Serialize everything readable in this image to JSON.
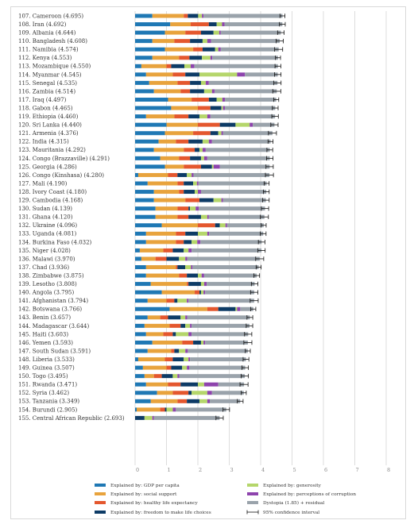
{
  "chart_data": {
    "type": "bar",
    "stacked": true,
    "orientation": "horizontal",
    "xlim": [
      0,
      8
    ],
    "x_ticks": [
      0,
      1,
      2,
      3,
      4,
      5,
      6,
      7,
      8
    ],
    "grid": "vertical",
    "legend_position": "bottom",
    "colors": {
      "gdp": "#1f78b4",
      "social": "#e8a33d",
      "health": "#e4572e",
      "freedom": "#0d3b66",
      "generosity": "#b5d66b",
      "corruption": "#8e44ad",
      "dystopia": "#9aa3ab",
      "ci": "#111111"
    },
    "legend": [
      {
        "key": "gdp",
        "label": "Explained by: GDP per capita"
      },
      {
        "key": "generosity",
        "label": "Explained by: generosity"
      },
      {
        "key": "social",
        "label": "Explained by: social support"
      },
      {
        "key": "corruption",
        "label": "Explained by: perceptions of corruption"
      },
      {
        "key": "health",
        "label": "Explained by: healthy life expectancy"
      },
      {
        "key": "dystopia",
        "label": "Dystopia (1.85) + residual"
      },
      {
        "key": "freedom",
        "label": "Explained by: freedom to make life choices"
      },
      {
        "key": "ci",
        "label": "95% confidence interval"
      }
    ],
    "rows": [
      {
        "label": "107. Cameroon (4.695)",
        "score": 4.695,
        "gdp": 0.55,
        "social": 1.0,
        "health": 0.13,
        "freedom": 0.33,
        "generosity": 0.12,
        "corruption": 0.05
      },
      {
        "label": "108. Iran (4.692)",
        "score": 4.692,
        "gdp": 1.12,
        "social": 0.65,
        "health": 0.58,
        "freedom": 0.25,
        "generosity": 0.17,
        "corruption": 0.08
      },
      {
        "label": "109. Albania (4.644)",
        "score": 4.644,
        "gdp": 0.95,
        "social": 0.65,
        "health": 0.5,
        "freedom": 0.4,
        "generosity": 0.18,
        "corruption": 0.05
      },
      {
        "label": "110. Bangladesh (4.608)",
        "score": 4.608,
        "gdp": 0.55,
        "social": 0.7,
        "health": 0.5,
        "freedom": 0.4,
        "generosity": 0.15,
        "corruption": 0.12
      },
      {
        "label": "111. Namibia (4.574)",
        "score": 4.574,
        "gdp": 0.95,
        "social": 0.9,
        "health": 0.3,
        "freedom": 0.4,
        "generosity": 0.1,
        "corruption": 0.08
      },
      {
        "label": "112. Kenya (4.553)",
        "score": 4.553,
        "gdp": 0.55,
        "social": 0.85,
        "health": 0.33,
        "freedom": 0.4,
        "generosity": 0.27,
        "corruption": 0.06
      },
      {
        "label": "113. Mozambique (4.550)",
        "score": 4.55,
        "gdp": 0.2,
        "social": 0.8,
        "health": 0.15,
        "freedom": 0.42,
        "generosity": 0.2,
        "corruption": 0.12
      },
      {
        "label": "114. Myanmar (4.545)",
        "score": 4.545,
        "gdp": 0.35,
        "social": 0.85,
        "health": 0.4,
        "freedom": 0.45,
        "generosity": 1.2,
        "corruption": 0.25
      },
      {
        "label": "115. Senegal (4.535)",
        "score": 4.535,
        "gdp": 0.45,
        "social": 0.9,
        "health": 0.4,
        "freedom": 0.35,
        "generosity": 0.15,
        "corruption": 0.1
      },
      {
        "label": "116. Zambia (4.514)",
        "score": 4.514,
        "gdp": 0.6,
        "social": 0.85,
        "health": 0.3,
        "freedom": 0.45,
        "generosity": 0.25,
        "corruption": 0.08
      },
      {
        "label": "117. Iraq (4.497)",
        "score": 4.497,
        "gdp": 1.05,
        "social": 0.75,
        "health": 0.55,
        "freedom": 0.25,
        "generosity": 0.18,
        "corruption": 0.08
      },
      {
        "label": "118. Gabon (4.465)",
        "score": 4.465,
        "gdp": 1.15,
        "social": 0.85,
        "health": 0.4,
        "freedom": 0.35,
        "generosity": 0.05,
        "corruption": 0.06
      },
      {
        "label": "119. Ethiopia (4.460)",
        "score": 4.46,
        "gdp": 0.35,
        "social": 0.9,
        "health": 0.45,
        "freedom": 0.35,
        "generosity": 0.25,
        "corruption": 0.1
      },
      {
        "label": "120. Sri Lanka (4.440)",
        "score": 4.44,
        "gdp": 1.0,
        "social": 1.0,
        "health": 0.7,
        "freedom": 0.5,
        "generosity": 0.45,
        "corruption": 0.1
      },
      {
        "label": "121. Armenia (4.376)",
        "score": 4.376,
        "gdp": 0.95,
        "social": 0.9,
        "health": 0.55,
        "freedom": 0.25,
        "generosity": 0.1,
        "corruption": 0.05
      },
      {
        "label": "122. India (4.315)",
        "score": 4.315,
        "gdp": 0.75,
        "social": 0.55,
        "health": 0.4,
        "freedom": 0.45,
        "generosity": 0.2,
        "corruption": 0.1
      },
      {
        "label": "123. Mauritania (4.292)",
        "score": 4.292,
        "gdp": 0.6,
        "social": 0.95,
        "health": 0.35,
        "freedom": 0.15,
        "generosity": 0.1,
        "corruption": 0.1
      },
      {
        "label": "124. Congo (Brazzaville) (4.291)",
        "score": 4.291,
        "gdp": 0.8,
        "social": 0.6,
        "health": 0.35,
        "freedom": 0.35,
        "generosity": 0.1,
        "corruption": 0.1
      },
      {
        "label": "125. Georgia (4.286)",
        "score": 4.286,
        "gdp": 0.95,
        "social": 0.6,
        "health": 0.55,
        "freedom": 0.35,
        "generosity": 0.05,
        "corruption": 0.2
      },
      {
        "label": "126. Congo (Kinshasa) (4.280)",
        "score": 4.28,
        "gdp": 0.1,
        "social": 0.95,
        "health": 0.3,
        "freedom": 0.3,
        "generosity": 0.15,
        "corruption": 0.06
      },
      {
        "label": "127. Mali (4.190)",
        "score": 4.19,
        "gdp": 0.4,
        "social": 0.95,
        "health": 0.2,
        "freedom": 0.3,
        "generosity": 0.12,
        "corruption": 0.05
      },
      {
        "label": "128. Ivory Coast (4.180)",
        "score": 4.18,
        "gdp": 0.6,
        "social": 0.8,
        "health": 0.15,
        "freedom": 0.35,
        "generosity": 0.1,
        "corruption": 0.1
      },
      {
        "label": "129. Cambodia (4.168)",
        "score": 4.168,
        "gdp": 0.6,
        "social": 1.0,
        "health": 0.45,
        "freedom": 0.45,
        "generosity": 0.25,
        "corruption": 0.05
      },
      {
        "label": "130. Sudan (4.139)",
        "score": 4.139,
        "gdp": 0.65,
        "social": 0.7,
        "health": 0.35,
        "freedom": 0.05,
        "generosity": 0.18,
        "corruption": 0.1
      },
      {
        "label": "131. Ghana (4.120)",
        "score": 4.12,
        "gdp": 0.65,
        "social": 0.7,
        "health": 0.35,
        "freedom": 0.4,
        "generosity": 0.2,
        "corruption": 0.05
      },
      {
        "label": "132. Ukraine (4.096)",
        "score": 4.096,
        "gdp": 0.85,
        "social": 1.15,
        "health": 0.55,
        "freedom": 0.15,
        "generosity": 0.18,
        "corruption": 0.05
      },
      {
        "label": "133. Uganda (4.081)",
        "score": 4.081,
        "gdp": 0.35,
        "social": 0.95,
        "health": 0.3,
        "freedom": 0.4,
        "generosity": 0.3,
        "corruption": 0.06
      },
      {
        "label": "134. Burkina Faso (4.032)",
        "score": 4.032,
        "gdp": 0.35,
        "social": 0.95,
        "health": 0.25,
        "freedom": 0.25,
        "generosity": 0.18,
        "corruption": 0.1
      },
      {
        "label": "135. Niger (4.028)",
        "score": 4.028,
        "gdp": 0.15,
        "social": 0.75,
        "health": 0.3,
        "freedom": 0.35,
        "generosity": 0.15,
        "corruption": 0.1
      },
      {
        "label": "136. Malawi (3.970)",
        "score": 3.97,
        "gdp": 0.2,
        "social": 0.45,
        "health": 0.35,
        "freedom": 0.4,
        "generosity": 0.2,
        "corruption": 0.06
      },
      {
        "label": "137. Chad (3.936)",
        "score": 3.936,
        "gdp": 0.35,
        "social": 0.95,
        "health": 0.05,
        "freedom": 0.25,
        "generosity": 0.18,
        "corruption": 0.05
      },
      {
        "label": "138. Zimbabwe (3.875)",
        "score": 3.875,
        "gdp": 0.35,
        "social": 1.05,
        "health": 0.25,
        "freedom": 0.35,
        "generosity": 0.12,
        "corruption": 0.08
      },
      {
        "label": "139. Lesotho (3.808)",
        "score": 3.808,
        "gdp": 0.5,
        "social": 1.15,
        "health": 0.05,
        "freedom": 0.4,
        "generosity": 0.1,
        "corruption": 0.08
      },
      {
        "label": "140. Angola (3.795)",
        "score": 3.795,
        "gdp": 0.85,
        "social": 1.05,
        "health": 0.15,
        "freedom": 0.05,
        "generosity": 0.08,
        "corruption": 0.05
      },
      {
        "label": "141. Afghanistan (3.794)",
        "score": 3.794,
        "gdp": 0.4,
        "social": 0.6,
        "health": 0.25,
        "freedom": 0.1,
        "generosity": 0.3,
        "corruption": 0.05
      },
      {
        "label": "142. Botswana (3.766)",
        "score": 3.766,
        "gdp": 1.1,
        "social": 1.2,
        "health": 0.35,
        "freedom": 0.55,
        "generosity": 0.05,
        "corruption": 0.1
      },
      {
        "label": "143. Benin (3.657)",
        "score": 3.657,
        "gdp": 0.4,
        "social": 0.4,
        "health": 0.25,
        "freedom": 0.4,
        "generosity": 0.15,
        "corruption": 0.06
      },
      {
        "label": "144. Madagascar (3.644)",
        "score": 3.644,
        "gdp": 0.3,
        "social": 0.8,
        "health": 0.35,
        "freedom": 0.15,
        "generosity": 0.15,
        "corruption": 0.05
      },
      {
        "label": "145. Haiti (3.603)",
        "score": 3.603,
        "gdp": 0.35,
        "social": 0.55,
        "health": 0.3,
        "freedom": 0.1,
        "generosity": 0.4,
        "corruption": 0.1
      },
      {
        "label": "146. Yemen (3.593)",
        "score": 3.593,
        "gdp": 0.55,
        "social": 0.95,
        "health": 0.35,
        "freedom": 0.25,
        "generosity": 0.08,
        "corruption": 0.05
      },
      {
        "label": "147. South Sudan (3.591)",
        "score": 3.591,
        "gdp": 0.4,
        "social": 0.75,
        "health": 0.1,
        "freedom": 0.15,
        "generosity": 0.2,
        "corruption": 0.08
      },
      {
        "label": "148. Liberia (3.533)",
        "score": 3.533,
        "gdp": 0.1,
        "social": 0.85,
        "health": 0.25,
        "freedom": 0.35,
        "generosity": 0.15,
        "corruption": 0.05
      },
      {
        "label": "149. Guinea (3.507)",
        "score": 3.507,
        "gdp": 0.25,
        "social": 0.75,
        "health": 0.15,
        "freedom": 0.35,
        "generosity": 0.15,
        "corruption": 0.08
      },
      {
        "label": "150. Togo (3.495)",
        "score": 3.495,
        "gdp": 0.3,
        "social": 0.3,
        "health": 0.25,
        "freedom": 0.35,
        "generosity": 0.15,
        "corruption": 0.06
      },
      {
        "label": "151. Rwanda (3.471)",
        "score": 3.471,
        "gdp": 0.35,
        "social": 0.7,
        "health": 0.4,
        "freedom": 0.55,
        "generosity": 0.2,
        "corruption": 0.45
      },
      {
        "label": "152. Syria (3.462)",
        "score": 3.462,
        "gdp": 0.7,
        "social": 0.5,
        "health": 0.5,
        "freedom": 0.1,
        "generosity": 0.5,
        "corruption": 0.15
      },
      {
        "label": "153. Tanzania (3.349)",
        "score": 3.349,
        "gdp": 0.5,
        "social": 0.85,
        "health": 0.3,
        "freedom": 0.4,
        "generosity": 0.25,
        "corruption": 0.08
      },
      {
        "label": "154. Burundi (2.905)",
        "score": 2.905,
        "gdp": 0.05,
        "social": 0.75,
        "health": 0.15,
        "freedom": 0.05,
        "generosity": 0.2,
        "corruption": 0.1
      },
      {
        "label": "155. Central African Republic (2.693)",
        "score": 2.693,
        "gdp": 0.0,
        "social": 0.0,
        "health": 0.0,
        "freedom": 0.3,
        "generosity": 0.25,
        "corruption": 0.05
      }
    ]
  }
}
